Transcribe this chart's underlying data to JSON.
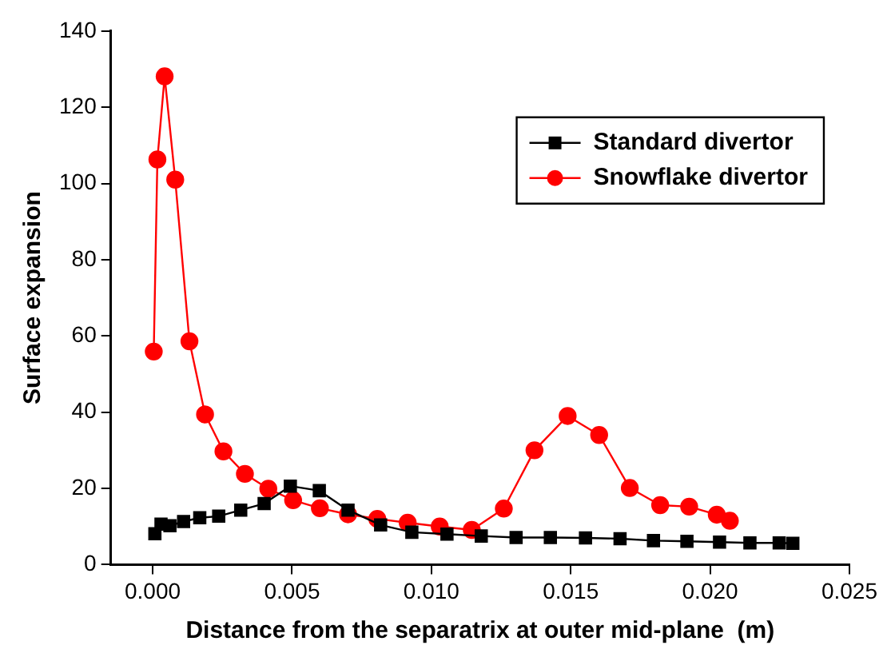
{
  "chart_data": {
    "type": "line",
    "xlabel": "Distance from the separatrix at outer mid-plane  (m)",
    "ylabel": "Surface expansion",
    "xlim": [
      -0.0015,
      0.025
    ],
    "xticks": [
      {
        "value": 0,
        "label": "0.000"
      },
      0.005,
      {
        "value": 0.01,
        "label": "0.010"
      },
      0.015,
      {
        "value": 0.02,
        "label": "0.020"
      },
      0.025
    ],
    "ylim": [
      0,
      140
    ],
    "yticks": [
      0,
      20,
      40,
      60,
      80,
      100,
      120,
      140
    ],
    "grid": false,
    "legend": "top right",
    "series": [
      {
        "name": "Standard divertor",
        "color": "#000000",
        "marker": "square",
        "x": [
          8e-05,
          0.0003,
          0.00062,
          0.00111,
          0.00169,
          0.00237,
          0.00316,
          0.004,
          0.00494,
          0.00598,
          0.00701,
          0.00818,
          0.0093,
          0.01056,
          0.01179,
          0.01304,
          0.01427,
          0.01553,
          0.01677,
          0.01797,
          0.01917,
          0.02034,
          0.02143,
          0.02248,
          0.02297
        ],
        "values": [
          8.1,
          10.6,
          10.2,
          11.3,
          12.3,
          12.7,
          14.3,
          16,
          20.6,
          19.4,
          14.3,
          10.4,
          8.5,
          8,
          7.5,
          7.1,
          7.1,
          7,
          6.8,
          6.3,
          6.1,
          5.9,
          5.7,
          5.7,
          5.6
        ]
      },
      {
        "name": "Snowflake divertor",
        "color": "#ff0000",
        "marker": "circle",
        "x": [
          4e-05,
          0.00017,
          0.00043,
          0.00081,
          0.00132,
          0.00188,
          0.00254,
          0.00331,
          0.00415,
          0.00504,
          0.006,
          0.00701,
          0.00806,
          0.00915,
          0.0103,
          0.01145,
          0.0126,
          0.0137,
          0.01489,
          0.01602,
          0.01712,
          0.01821,
          0.01925,
          0.02024,
          0.02071
        ],
        "values": [
          55.9,
          106.3,
          128.1,
          101,
          58.6,
          39.4,
          29.7,
          23.8,
          19.9,
          16.9,
          14.8,
          13.2,
          12,
          11,
          10,
          9.1,
          14.7,
          30,
          39,
          34,
          20.1,
          15.6,
          15.2,
          13.1,
          11.5
        ]
      }
    ]
  }
}
